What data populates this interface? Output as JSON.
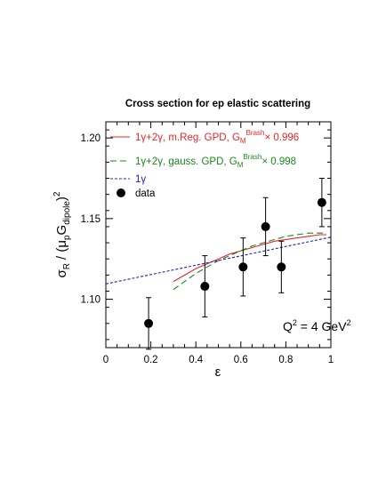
{
  "chart_data": {
    "type": "scatter",
    "title": "Cross section for ep elastic scattering",
    "xlabel": "ε",
    "ylabel": {
      "main": "σ",
      "main_sub": "R",
      "slash": "/ (μ",
      "mu_sub": "p",
      "G": "G",
      "G_sub": "dipole",
      "close": ")",
      "power": "2"
    },
    "xlim": [
      0,
      1
    ],
    "ylim": [
      1.07,
      1.21
    ],
    "x_ticks": [
      0,
      0.2,
      0.4,
      0.6,
      0.8,
      1
    ],
    "x_tick_labels": [
      "0",
      "0.2",
      "0.4",
      "0.6",
      "0.8",
      "1"
    ],
    "y_ticks": [
      1.1,
      1.15,
      1.2
    ],
    "y_tick_labels": [
      "1.10",
      "1.15",
      "1.20"
    ],
    "annotation": {
      "text_main": "Q",
      "text_sup": "2",
      "text_mid": " = 4 GeV",
      "text_sup2": "2"
    },
    "legend_position": "top-left",
    "series": [
      {
        "kind": "line",
        "style": "solid",
        "color": "#e8262a",
        "legend": {
          "pre": "1γ+2γ, m.Reg. GPD, G",
          "sub": "M",
          "sup": "Brash",
          "post": "× 0.996"
        },
        "x": [
          0.3,
          0.35,
          0.4,
          0.45,
          0.5,
          0.55,
          0.6,
          0.65,
          0.7,
          0.75,
          0.8,
          0.85,
          0.9,
          0.95,
          0.98
        ],
        "y": [
          1.111,
          1.115,
          1.119,
          1.122,
          1.125,
          1.128,
          1.13,
          1.132,
          1.134,
          1.136,
          1.137,
          1.138,
          1.139,
          1.14,
          1.14
        ]
      },
      {
        "kind": "line",
        "style": "dashed-long",
        "color": "#1a8a1a",
        "legend": {
          "pre": "1γ+2γ, gauss. GPD, G",
          "sub": "M",
          "sup": "Brash",
          "post": "× 0.998"
        },
        "x": [
          0.3,
          0.35,
          0.4,
          0.45,
          0.5,
          0.55,
          0.6,
          0.65,
          0.7,
          0.75,
          0.8,
          0.85,
          0.9,
          0.95,
          0.98
        ],
        "y": [
          1.106,
          1.111,
          1.116,
          1.12,
          1.124,
          1.127,
          1.13,
          1.133,
          1.135,
          1.137,
          1.139,
          1.14,
          1.141,
          1.141,
          1.141
        ]
      },
      {
        "kind": "line",
        "style": "dashed-short",
        "color": "#2020c8",
        "legend": {
          "pre": "1γ",
          "sub": "",
          "sup": "",
          "post": ""
        },
        "x": [
          0,
          0.1,
          0.2,
          0.3,
          0.4,
          0.5,
          0.6,
          0.7,
          0.8,
          0.9,
          1.0
        ],
        "y": [
          1.1095,
          1.1124,
          1.1153,
          1.1182,
          1.1211,
          1.124,
          1.1269,
          1.1298,
          1.1327,
          1.1356,
          1.1385
        ]
      },
      {
        "kind": "points",
        "color": "#000000",
        "legend": {
          "pre": "data",
          "sub": "",
          "sup": "",
          "post": ""
        },
        "x": [
          0.19,
          0.44,
          0.61,
          0.71,
          0.78,
          0.96
        ],
        "y": [
          1.085,
          1.108,
          1.12,
          1.145,
          1.12,
          1.16
        ],
        "err": [
          0.016,
          0.019,
          0.018,
          0.018,
          0.016,
          0.015
        ]
      }
    ]
  }
}
